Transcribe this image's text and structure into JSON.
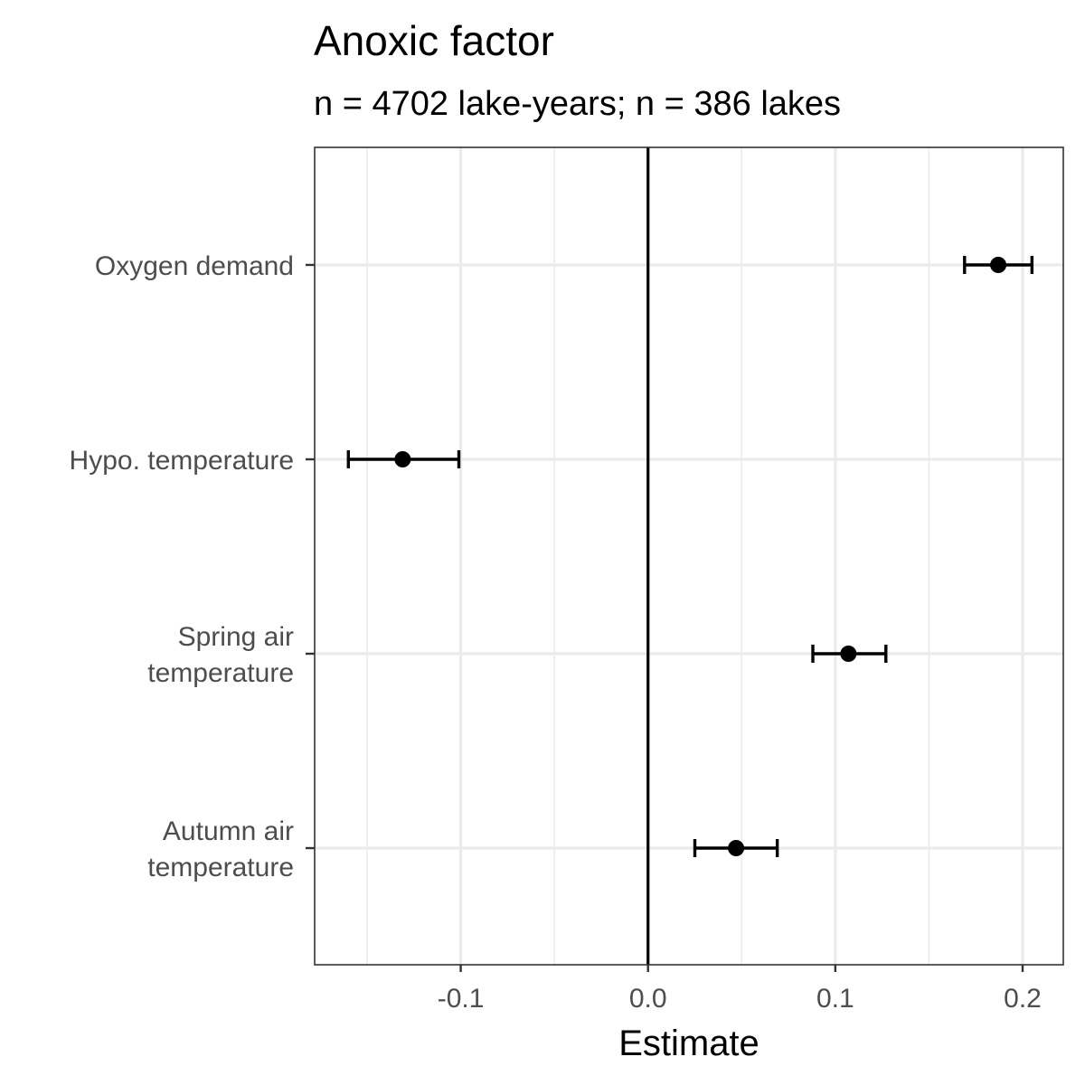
{
  "chart_data": {
    "type": "scatter",
    "title": "Anoxic factor",
    "subtitle": "n = 4702 lake-years; n = 386 lakes",
    "xlabel": "Estimate",
    "ylabel": "",
    "xlim": [
      -0.178,
      0.2
    ],
    "x_ticks": [
      {
        "value": -0.1,
        "label": "-0.1"
      },
      {
        "value": 0.0,
        "label": "0.0"
      },
      {
        "value": 0.1,
        "label": "0.1"
      },
      {
        "value": 0.2,
        "label": "0.2"
      }
    ],
    "x_minor_ticks": [
      -0.15,
      -0.05,
      0.05,
      0.15
    ],
    "reference_line": 0.0,
    "grid": true,
    "categories": [
      {
        "label_lines": [
          "Oxygen demand"
        ],
        "estimate": 0.187,
        "lower": 0.169,
        "upper": 0.205
      },
      {
        "label_lines": [
          "Hypo. temperature"
        ],
        "estimate": -0.131,
        "lower": -0.16,
        "upper": -0.101
      },
      {
        "label_lines": [
          "Spring air",
          "temperature"
        ],
        "estimate": 0.107,
        "lower": 0.088,
        "upper": 0.127
      },
      {
        "label_lines": [
          "Autumn air",
          "temperature"
        ],
        "estimate": 0.047,
        "lower": 0.025,
        "upper": 0.069
      }
    ],
    "colors": {
      "point": "#000000",
      "grid": "#ebebeb",
      "panel_border": "#333333",
      "tick_text": "#4d4d4d"
    }
  }
}
